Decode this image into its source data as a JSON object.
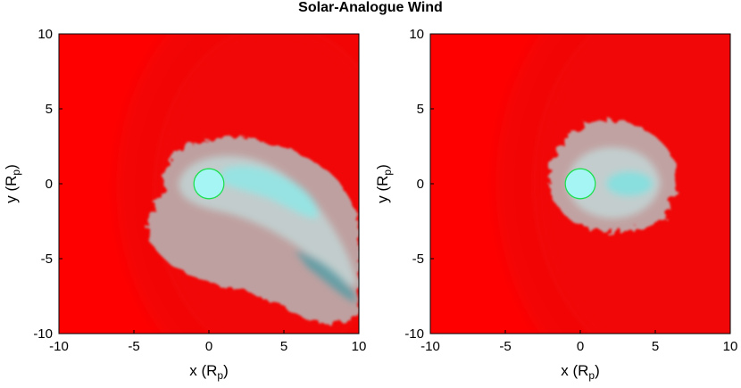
{
  "title": "Solar-Analogue Wind",
  "colors": {
    "wind": "#ff0000",
    "planet_fill": "#9ff3f3",
    "planet_edge": "#17e04a",
    "wake": "#b6c4c4",
    "wake_core": "#8ee9e9"
  },
  "chart_data": [
    {
      "type": "heatmap",
      "title": "Solar-Analogue Wind",
      "xlabel": "x (Rp)",
      "ylabel": "y (Rp)",
      "xlim": [
        -10,
        10
      ],
      "ylim": [
        -10,
        10
      ],
      "xticks": [
        "-10",
        "-5",
        "0",
        "5",
        "10"
      ],
      "yticks": [
        "10",
        "5",
        "0",
        "-5",
        "-10"
      ],
      "planet": {
        "center": [
          0,
          0
        ],
        "radius": 1
      },
      "tail_direction": "down-right"
    },
    {
      "type": "heatmap",
      "xlabel": "x (Rp)",
      "ylabel": "y (Rp)",
      "xlim": [
        -10,
        10
      ],
      "ylim": [
        -10,
        10
      ],
      "xticks": [
        "-10",
        "-5",
        "0",
        "5",
        "10"
      ],
      "yticks": [
        "10",
        "5",
        "0",
        "-5",
        "-10"
      ],
      "planet": {
        "center": [
          0,
          0
        ],
        "radius": 1
      },
      "tail_direction": "right"
    }
  ]
}
